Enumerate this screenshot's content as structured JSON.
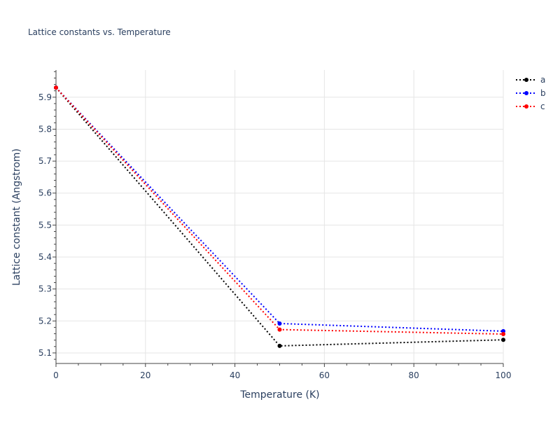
{
  "chart_data": {
    "type": "line",
    "title": "Lattice constants vs. Temperature",
    "xlabel": "Temperature (K)",
    "ylabel": "Lattice constant (Angstrom)",
    "x": [
      0,
      50,
      100
    ],
    "xlim": [
      0,
      100
    ],
    "ylim": [
      5.067,
      5.985
    ],
    "xticks": [
      0,
      20,
      40,
      60,
      80,
      100
    ],
    "yticks": [
      5.1,
      5.2,
      5.3,
      5.4,
      5.5,
      5.6,
      5.7,
      5.8,
      5.9
    ],
    "grid": true,
    "legend": "top-right",
    "line_style": "dotted with markers",
    "series": [
      {
        "name": "a",
        "color": "#000000",
        "values": [
          5.93,
          5.122,
          5.141
        ]
      },
      {
        "name": "b",
        "color": "#0000ff",
        "values": [
          5.93,
          5.192,
          5.168
        ]
      },
      {
        "name": "c",
        "color": "#ff0000",
        "values": [
          5.93,
          5.173,
          5.159
        ]
      }
    ]
  }
}
